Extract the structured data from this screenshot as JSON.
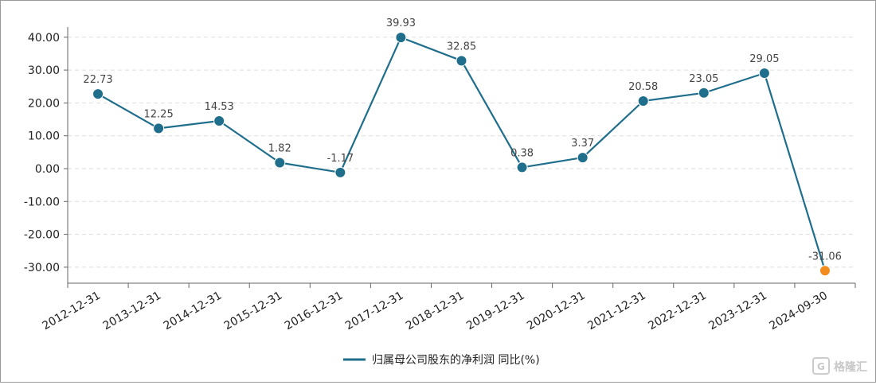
{
  "chart_data": {
    "type": "line",
    "categories": [
      "2012-12-31",
      "2013-12-31",
      "2014-12-31",
      "2015-12-31",
      "2016-12-31",
      "2017-12-31",
      "2018-12-31",
      "2019-12-31",
      "2020-12-31",
      "2021-12-31",
      "2022-12-31",
      "2023-12-31",
      "2024-09-30"
    ],
    "series": [
      {
        "name": "归属母公司股东的净利润 同比(%)",
        "values": [
          22.73,
          12.25,
          14.53,
          1.82,
          -1.17,
          39.93,
          32.85,
          0.38,
          3.37,
          20.58,
          23.05,
          29.05,
          -31.06
        ],
        "labels": [
          "22.73",
          "12.25",
          "14.53",
          "1.82",
          "-1.17",
          "39.93",
          "32.85",
          "0.38",
          "3.37",
          "20.58",
          "23.05",
          "29.05",
          "-31.06"
        ],
        "color": "#1f6e8c",
        "highlight_last_color": "#f28c1e"
      }
    ],
    "ylim": [
      -35,
      45
    ],
    "yticks": [
      40,
      30,
      20,
      10,
      0,
      -10,
      -20,
      -30
    ],
    "ytick_labels": [
      "40.00",
      "30.00",
      "20.00",
      "10.00",
      "0.00",
      "-10.00",
      "-20.00",
      "-30.00"
    ],
    "grid": true,
    "legend_position": "bottom-center"
  },
  "watermark": {
    "text": "格隆汇"
  }
}
